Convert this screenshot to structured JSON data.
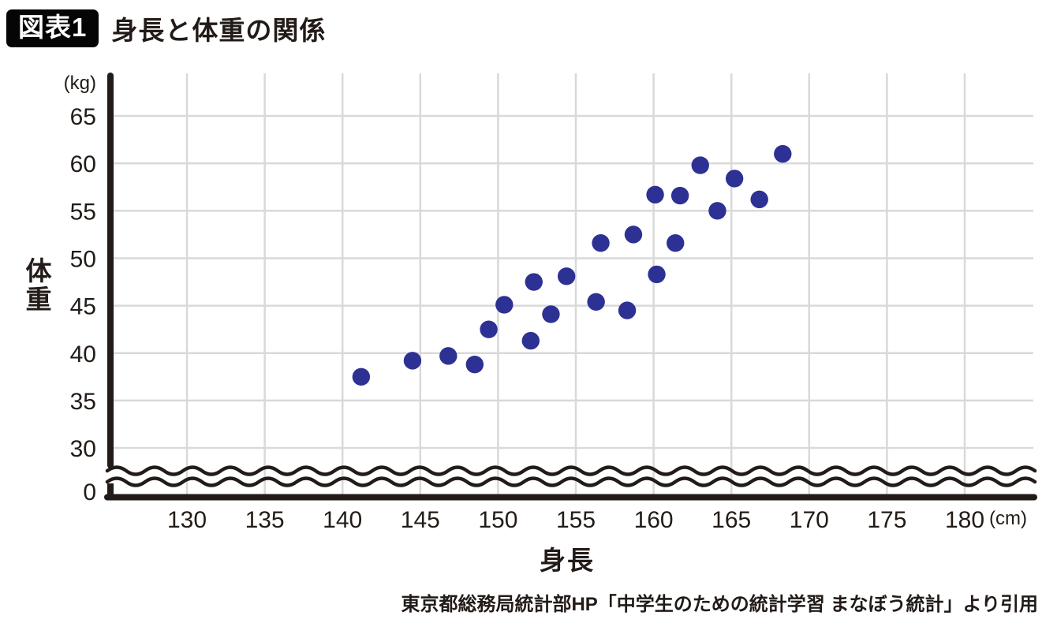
{
  "header": {
    "badge": "図表1",
    "title": "身長と体重の関係"
  },
  "chart_data": {
    "type": "scatter",
    "title": "身長と体重の関係",
    "xlabel": "身長",
    "ylabel": "体重",
    "x_unit": "(cm)",
    "y_unit": "(kg)",
    "x_ticks": [
      130,
      135,
      140,
      145,
      150,
      155,
      160,
      165,
      170,
      175,
      180
    ],
    "y_ticks": [
      65,
      60,
      55,
      50,
      45,
      40,
      35,
      30,
      0
    ],
    "x_range": [
      130,
      180
    ],
    "y_range": [
      0,
      65
    ],
    "y_axis_break_between": [
      0,
      30
    ],
    "grid": true,
    "legend": false,
    "points_cm_kg": [
      [
        141.2,
        37.5
      ],
      [
        144.5,
        39.2
      ],
      [
        146.8,
        39.7
      ],
      [
        148.5,
        38.8
      ],
      [
        149.4,
        42.5
      ],
      [
        150.4,
        45.1
      ],
      [
        152.1,
        41.3
      ],
      [
        152.3,
        47.5
      ],
      [
        153.4,
        44.1
      ],
      [
        154.4,
        48.1
      ],
      [
        156.3,
        45.4
      ],
      [
        156.6,
        51.6
      ],
      [
        158.3,
        44.5
      ],
      [
        158.7,
        52.5
      ],
      [
        160.1,
        56.7
      ],
      [
        160.2,
        48.3
      ],
      [
        161.4,
        51.6
      ],
      [
        161.7,
        56.6
      ],
      [
        163.0,
        59.8
      ],
      [
        164.1,
        55.0
      ],
      [
        165.2,
        58.4
      ],
      [
        166.8,
        56.2
      ],
      [
        168.3,
        61.0
      ]
    ],
    "source": "東京都総務局統計部HP「中学生のための統計学習 まなぼう統計」より引用",
    "colors": {
      "point": "#2d3193",
      "grid": "#d9d9d9",
      "ink": "#221b17",
      "badge_bg": "#050505",
      "badge_text": "#ffffff"
    }
  }
}
